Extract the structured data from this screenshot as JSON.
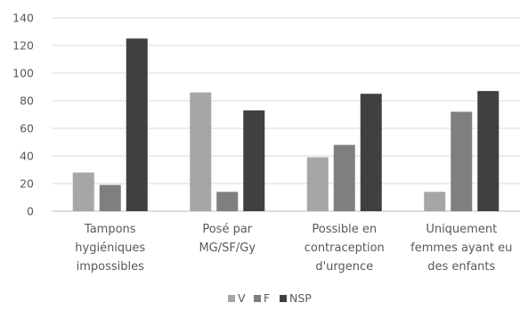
{
  "chart_data": {
    "type": "bar",
    "title": "",
    "xlabel": "",
    "ylabel": "",
    "ylim": [
      0,
      140
    ],
    "yticks": [
      0,
      20,
      40,
      60,
      80,
      100,
      120,
      140
    ],
    "grid": true,
    "legend_position": "bottom",
    "categories": [
      [
        "Tampons",
        "hygiéniques",
        "impossibles"
      ],
      [
        "Posé par",
        "MG/SF/Gy"
      ],
      [
        "Possible en",
        "contraception",
        "d'urgence"
      ],
      [
        "Uniquement",
        "femmes ayant eu",
        "des enfants"
      ]
    ],
    "series": [
      {
        "name": "V",
        "color": "#a6a6a6",
        "values": [
          28,
          86,
          39,
          14
        ]
      },
      {
        "name": "F",
        "color": "#7f7f7f",
        "values": [
          19,
          14,
          48,
          72
        ]
      },
      {
        "name": "NSP",
        "color": "#404040",
        "values": [
          125,
          73,
          85,
          87
        ]
      }
    ]
  }
}
